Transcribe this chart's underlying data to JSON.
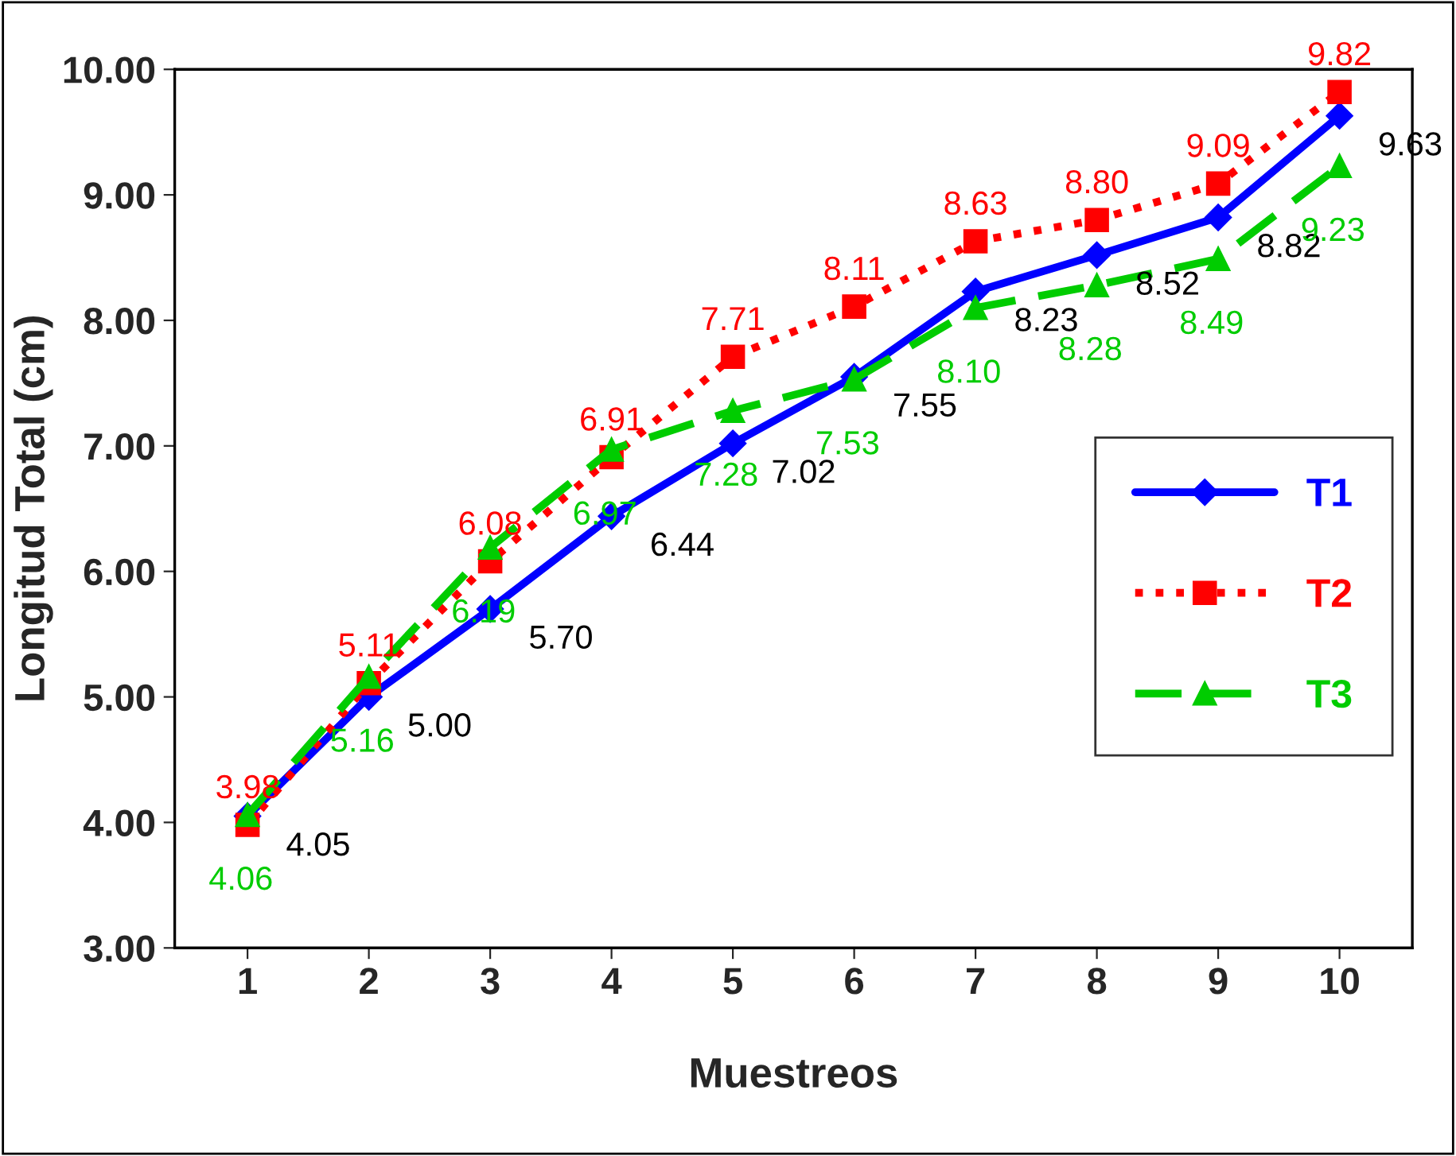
{
  "chart_data": {
    "type": "line",
    "xlabel": "Muestreos",
    "ylabel": "Longitud Total (cm)",
    "categories": [
      "1",
      "2",
      "3",
      "4",
      "5",
      "6",
      "7",
      "8",
      "9",
      "10"
    ],
    "ylim": [
      3,
      10
    ],
    "yticks": [
      {
        "value": 3,
        "label": "3.00"
      },
      {
        "value": 4,
        "label": "4.00"
      },
      {
        "value": 5,
        "label": "5.00"
      },
      {
        "value": 6,
        "label": "6.00"
      },
      {
        "value": 7,
        "label": "7.00"
      },
      {
        "value": 8,
        "label": "8.00"
      },
      {
        "value": 9,
        "label": "9.00"
      },
      {
        "value": 10,
        "label": "10.00"
      }
    ],
    "grid": false,
    "legend": "right",
    "series": [
      {
        "name": "T1",
        "color": "#0000ff",
        "marker": "diamond",
        "line_style": "solid",
        "values": [
          4.05,
          5.0,
          5.7,
          6.44,
          7.02,
          7.55,
          8.23,
          8.52,
          8.82,
          9.63
        ],
        "value_labels": [
          "4.05",
          "5.00",
          "5.70",
          "6.44",
          "7.02",
          "7.55",
          "8.23",
          "8.52",
          "8.82",
          "9.63"
        ]
      },
      {
        "name": "T2",
        "color": "#ff0000",
        "marker": "square",
        "line_style": "dotted",
        "values": [
          3.98,
          5.11,
          6.08,
          6.91,
          7.71,
          8.11,
          8.63,
          8.8,
          9.09,
          9.82
        ],
        "value_labels": [
          "3.98",
          "5.11",
          "6.08",
          "6.91",
          "7.71",
          "8.11",
          "8.63",
          "8.80",
          "9.09",
          "9.82"
        ]
      },
      {
        "name": "T3",
        "color": "#00cc00",
        "marker": "triangle",
        "line_style": "dashed",
        "values": [
          4.06,
          5.16,
          6.19,
          6.97,
          7.28,
          7.53,
          8.1,
          8.28,
          8.49,
          9.23
        ],
        "value_labels": [
          "4.06",
          "5.16",
          "6.19",
          "6.97",
          "7.28",
          "7.53",
          "8.10",
          "8.28",
          "8.49",
          "9.23"
        ]
      }
    ]
  }
}
